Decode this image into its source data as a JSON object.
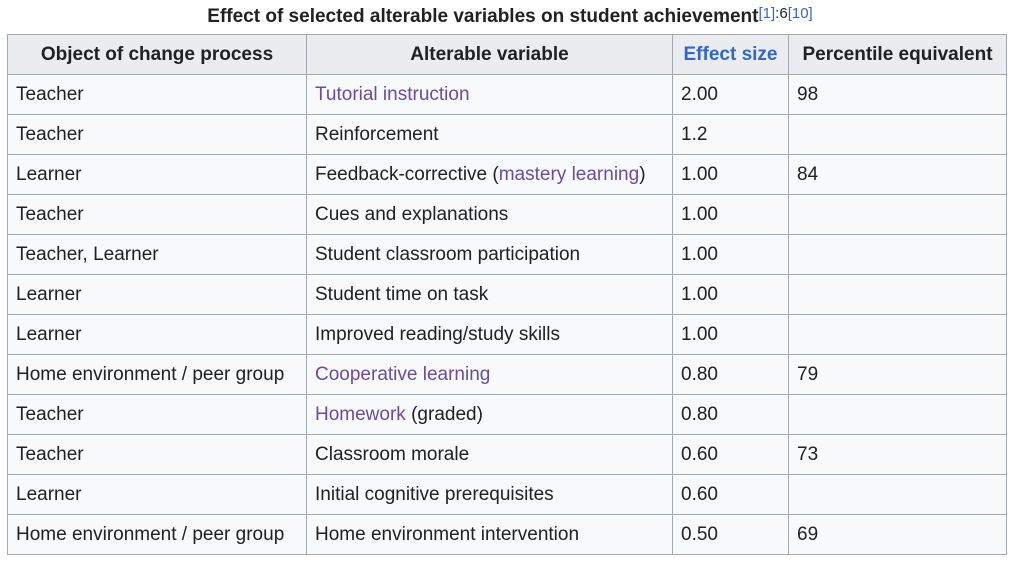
{
  "caption": {
    "title": "Effect of selected alterable variables on student achievement",
    "ref1": "[1]",
    "page": ":6",
    "ref2": "[10]"
  },
  "headers": [
    "Object of change process",
    "Alterable variable",
    "Effect size",
    "Percentile equivalent"
  ],
  "rows": [
    {
      "object": "Teacher",
      "variable": [
        {
          "text": "Tutorial instruction",
          "link": true
        }
      ],
      "effect": "2.00",
      "percentile": "98"
    },
    {
      "object": "Teacher",
      "variable": [
        {
          "text": "Reinforcement",
          "link": false
        }
      ],
      "effect": "1.2",
      "percentile": ""
    },
    {
      "object": "Learner",
      "variable": [
        {
          "text": "Feedback-corrective (",
          "link": false
        },
        {
          "text": "mastery learning",
          "link": true
        },
        {
          "text": ")",
          "link": false
        }
      ],
      "effect": "1.00",
      "percentile": "84"
    },
    {
      "object": "Teacher",
      "variable": [
        {
          "text": "Cues and explanations",
          "link": false
        }
      ],
      "effect": "1.00",
      "percentile": ""
    },
    {
      "object": "Teacher, Learner",
      "variable": [
        {
          "text": "Student classroom participation",
          "link": false
        }
      ],
      "effect": "1.00",
      "percentile": ""
    },
    {
      "object": "Learner",
      "variable": [
        {
          "text": "Student time on task",
          "link": false
        }
      ],
      "effect": "1.00",
      "percentile": ""
    },
    {
      "object": "Learner",
      "variable": [
        {
          "text": "Improved reading/study skills",
          "link": false
        }
      ],
      "effect": "1.00",
      "percentile": ""
    },
    {
      "object": "Home environment / peer group",
      "variable": [
        {
          "text": "Cooperative learning",
          "link": true
        }
      ],
      "effect": "0.80",
      "percentile": "79"
    },
    {
      "object": "Teacher",
      "variable": [
        {
          "text": "Homework",
          "link": true
        },
        {
          "text": " (graded)",
          "link": false
        }
      ],
      "effect": "0.80",
      "percentile": ""
    },
    {
      "object": "Teacher",
      "variable": [
        {
          "text": "Classroom morale",
          "link": false
        }
      ],
      "effect": "0.60",
      "percentile": "73"
    },
    {
      "object": "Learner",
      "variable": [
        {
          "text": "Initial cognitive prerequisites",
          "link": false
        }
      ],
      "effect": "0.60",
      "percentile": ""
    },
    {
      "object": "Home environment / peer group",
      "variable": [
        {
          "text": "Home environment intervention",
          "link": false
        }
      ],
      "effect": "0.50",
      "percentile": "69"
    }
  ],
  "colors": {
    "link": "#6b4ba1",
    "header_link": "#3366cc",
    "header_bg": "#eaecf0",
    "cell_bg": "#f8f9fa",
    "border": "#a2a9b1"
  }
}
